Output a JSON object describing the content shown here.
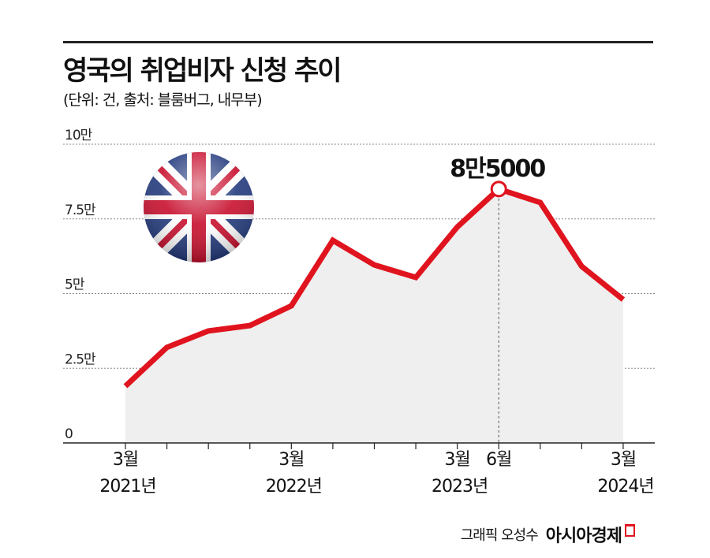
{
  "header": {
    "title": "영국의 취업비자 신청 추이",
    "subtitle": "(단위: 건, 출처: 블룸버그, 내무부)"
  },
  "footer": {
    "credit": "그래픽 오성수",
    "brand": "아시아경제"
  },
  "colors": {
    "line": "#e0141e",
    "area": "#efefef",
    "grid": "#888888"
  },
  "chart_data": {
    "type": "line",
    "title": "영국의 취업비자 신청 추이",
    "unit": "건",
    "x": [
      "2021-03",
      "2021-06",
      "2021-09",
      "2021-12",
      "2022-03",
      "2022-06",
      "2022-09",
      "2022-12",
      "2023-03",
      "2023-06",
      "2023-09",
      "2023-12",
      "2024-03"
    ],
    "series": [
      {
        "name": "취업비자 신청",
        "values": [
          19000,
          32000,
          37500,
          39300,
          45900,
          67800,
          59600,
          55400,
          72300,
          85000,
          80500,
          59100,
          48000
        ]
      }
    ],
    "ylim": [
      0,
      100000
    ],
    "y_ticks": [
      {
        "value": 0,
        "label": "0"
      },
      {
        "value": 25000,
        "label": "2.5만"
      },
      {
        "value": 50000,
        "label": "5만"
      },
      {
        "value": 75000,
        "label": "7.5만"
      },
      {
        "value": 100000,
        "label": "10만"
      }
    ],
    "x_tick_labels": [
      {
        "index": 0,
        "month": "3월",
        "year": "2021년"
      },
      {
        "index": 4,
        "month": "3월",
        "year": "2022년"
      },
      {
        "index": 8,
        "month": "3월",
        "year": "2023년"
      },
      {
        "index": 9,
        "month": "6월",
        "year": ""
      },
      {
        "index": 12,
        "month": "3월",
        "year": "2024년"
      }
    ],
    "annotation": {
      "index": 9,
      "label": "8만5000"
    },
    "grid": true,
    "legend": "none"
  }
}
